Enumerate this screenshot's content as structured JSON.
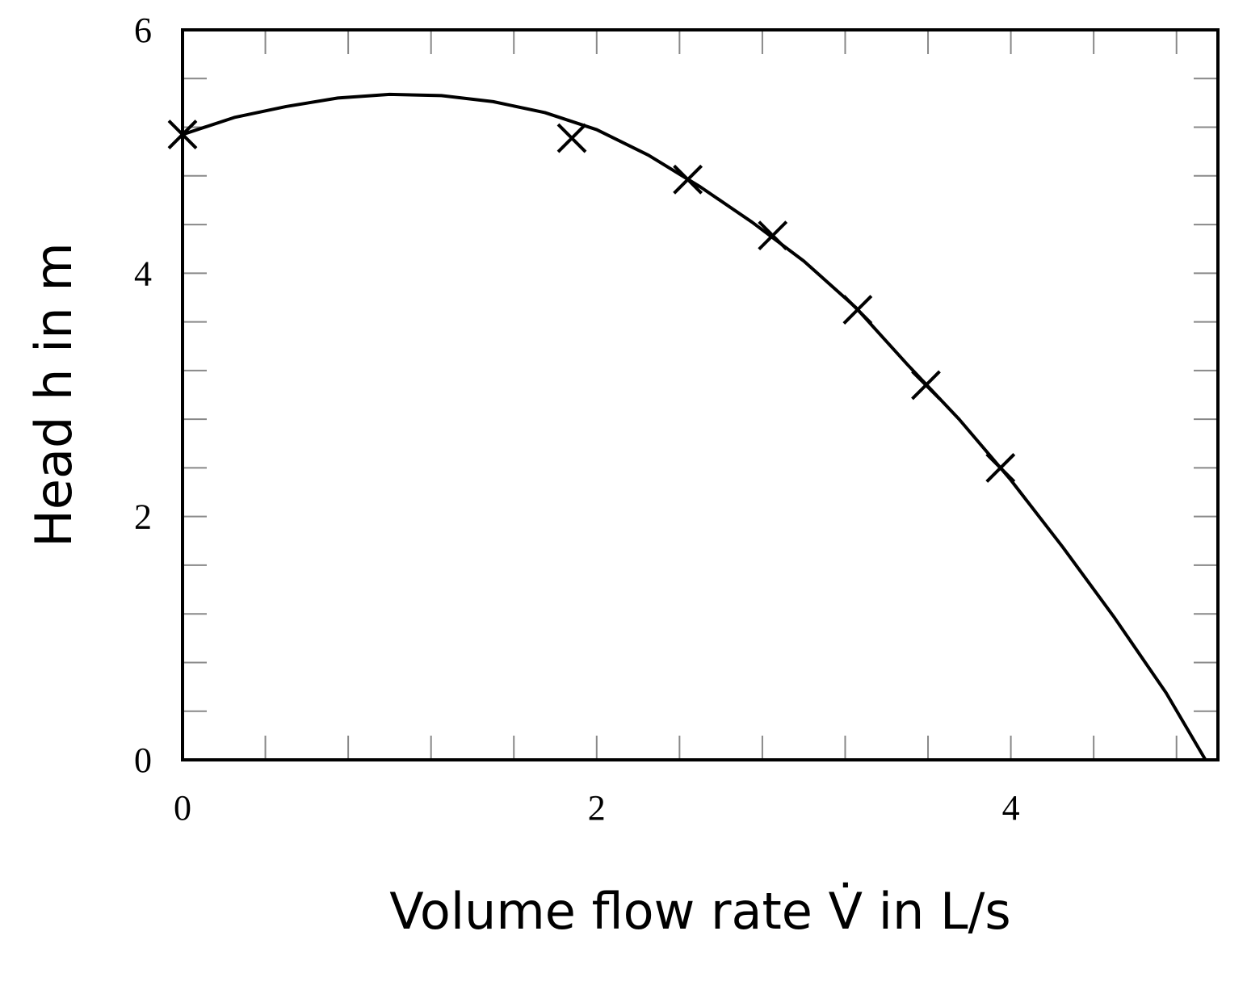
{
  "chart_data": {
    "type": "line",
    "xlabel": "Volume flow rate V̇ in L/s",
    "ylabel": "Head h in m",
    "xlim": [
      0,
      5
    ],
    "ylim": [
      0,
      6
    ],
    "xticks": [
      0,
      2,
      4
    ],
    "yticks": [
      0,
      2,
      4,
      6
    ],
    "xtick_marks": [
      0.4,
      0.8,
      1.2,
      1.6,
      2.0,
      2.4,
      2.8,
      3.2,
      3.6,
      4.0,
      4.4,
      4.8
    ],
    "ytick_marks": [
      0.4,
      0.8,
      1.2,
      1.6,
      2.0,
      2.4,
      2.8,
      3.2,
      3.6,
      4.0,
      4.4,
      4.8,
      5.2,
      5.6
    ],
    "grid": false,
    "series": [
      {
        "type": "line",
        "color": "#000000",
        "x": [
          0,
          0.25,
          0.5,
          0.75,
          1,
          1.25,
          1.5,
          1.75,
          2,
          2.25,
          2.5,
          2.75,
          3,
          3.25,
          3.5,
          3.75,
          4,
          4.25,
          4.5,
          4.75,
          4.94
        ],
        "values": [
          5.14,
          5.28,
          5.37,
          5.44,
          5.47,
          5.46,
          5.41,
          5.32,
          5.18,
          4.97,
          4.71,
          4.42,
          4.1,
          3.72,
          3.25,
          2.8,
          2.3,
          1.75,
          1.17,
          0.55,
          0
        ]
      },
      {
        "type": "scatter",
        "color": "#000000",
        "x": [
          0,
          1.88,
          2.44,
          2.85,
          3.26,
          3.59,
          3.95
        ],
        "values": [
          5.14,
          5.11,
          4.77,
          4.31,
          3.7,
          3.08,
          2.4
        ]
      }
    ]
  }
}
